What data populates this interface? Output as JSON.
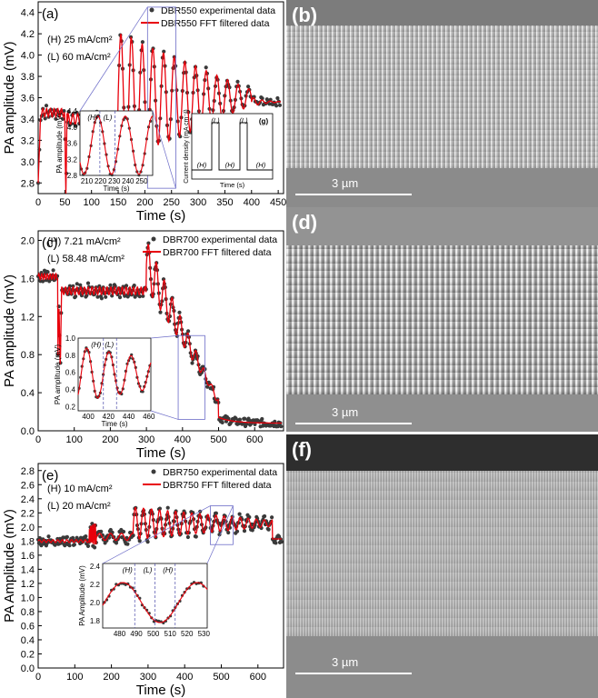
{
  "colors": {
    "exp": "#3a3a3a",
    "fft": "#e8000b",
    "zoom": "#6d6dc8",
    "axis": "#000000"
  },
  "chart_data": [
    {
      "panel": "(a)",
      "type": "line",
      "series": [
        {
          "name": "DBR550 experimental data",
          "style": "scatter"
        },
        {
          "name": "DBR550 FFT filtered data",
          "style": "line"
        }
      ],
      "ann1": "(H) 25 mA/cm²",
      "ann2": "(L) 60 mA/cm²",
      "xlabel": "Time (s)",
      "ylabel": "PA amplitude (mV)",
      "xlim": [
        0,
        460
      ],
      "ylim": [
        2.7,
        4.5
      ],
      "xticks": [
        0,
        50,
        100,
        150,
        200,
        250,
        300,
        350,
        400,
        450
      ],
      "yticks": [
        2.8,
        3.0,
        3.2,
        3.4,
        3.6,
        3.8,
        4.0,
        4.2,
        4.4
      ],
      "profile": {
        "spike_t": 50,
        "base_low": 3.46,
        "base_high": 3.56,
        "osc_start": 150,
        "osc_end": 400,
        "period": 20,
        "amp_max": 0.55,
        "final": 3.55
      },
      "inset": {
        "xlabel": "Time (s)",
        "ylabel": "PA amplitude (mV)",
        "xlim": [
          205,
          258
        ],
        "ylim": [
          2.8,
          4.4
        ],
        "xticks": [
          210,
          220,
          230,
          240,
          250
        ],
        "yticks": [
          2.8,
          3.2,
          3.6,
          4.0,
          4.4
        ],
        "labels": [
          "(H)",
          "(L)"
        ],
        "period": 20,
        "center": 3.55,
        "amp": 0.72
      },
      "current_inset": {
        "panel": "(g)",
        "ylabel": "Current density (mA cm⁻²)",
        "xlabel": "Time (s)",
        "labels": [
          "(H)",
          "(L)",
          "(H)",
          "(L)",
          "(H)"
        ]
      }
    },
    {
      "panel": "(c)",
      "type": "line",
      "series": [
        {
          "name": "DBR700 experimental data",
          "style": "scatter"
        },
        {
          "name": "DBR700 FFT filtered data",
          "style": "line"
        }
      ],
      "ann1": "(H) 7.21 mA/cm²",
      "ann2": "(L) 58.48 mA/cm²",
      "xlabel": "Time (s)",
      "ylabel": "PA amplitude (mV)",
      "xlim": [
        0,
        680
      ],
      "ylim": [
        0,
        2.1
      ],
      "xticks": [
        0,
        100,
        200,
        300,
        400,
        500,
        600
      ],
      "yticks": [
        0.0,
        0.4,
        0.8,
        1.2,
        1.6,
        2.0
      ],
      "inset": {
        "xlabel": "Time (s)",
        "ylabel": "PA amplitude (mV)",
        "xlim": [
          390,
          462
        ],
        "ylim": [
          0.15,
          1.0
        ],
        "xticks": [
          400,
          420,
          440,
          460
        ],
        "yticks": [
          0.2,
          0.4,
          0.6,
          0.8,
          1.0
        ],
        "labels": [
          "(H)",
          "(L)"
        ]
      }
    },
    {
      "panel": "(e)",
      "type": "line",
      "series": [
        {
          "name": "DBR750 experimental data",
          "style": "scatter"
        },
        {
          "name": "DBR750 FFT filtered data",
          "style": "line"
        }
      ],
      "ann1": "(H) 10 mA/cm²",
      "ann2": "(L) 20 mA/cm²",
      "xlabel": "Time (s)",
      "ylabel": "PA Amplitude (mV)",
      "xlim": [
        0,
        670
      ],
      "ylim": [
        0,
        2.9
      ],
      "xticks": [
        0,
        100,
        200,
        300,
        400,
        500,
        600
      ],
      "yticks": [
        0.0,
        0.2,
        0.4,
        0.6,
        0.8,
        1.0,
        1.2,
        1.4,
        1.6,
        1.8,
        2.0,
        2.2,
        2.4,
        2.6,
        2.8
      ],
      "inset": {
        "xlabel": "",
        "ylabel": "PA Amplitude (mV)",
        "xlim": [
          470,
          532
        ],
        "ylim": [
          1.72,
          2.43
        ],
        "xticks": [
          480,
          490,
          500,
          510,
          520,
          530
        ],
        "yticks": [
          1.8,
          2.0,
          2.2,
          2.4
        ],
        "labels": [
          "(H)",
          "(L)",
          "(H)"
        ]
      }
    }
  ],
  "sem_panels": [
    {
      "label": "(b)",
      "scale": "3 µm"
    },
    {
      "label": "(d)",
      "scale": "3 µm"
    },
    {
      "label": "(f)",
      "scale": "3 µm"
    }
  ]
}
